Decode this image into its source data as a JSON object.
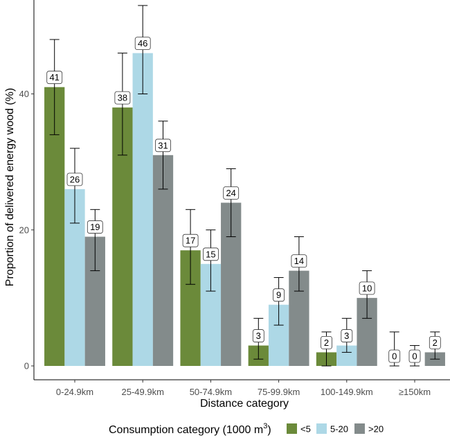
{
  "chart_data": {
    "type": "bar",
    "xlabel": "Distance category",
    "ylabel": "Proportion of delivered energy wood (%)",
    "ylim": [
      0,
      55
    ],
    "yticks": [
      0,
      20,
      40
    ],
    "grid": false,
    "categories": [
      "0-24.9km",
      "25-49.9km",
      "50-74.9km",
      "75-99.9km",
      "100-149.9km",
      "≥150km"
    ],
    "legend": {
      "title_main": "Consumption category (1000 m",
      "title_sup": "3",
      "title_end": ")",
      "position": "bottom"
    },
    "series": [
      {
        "name": "<5",
        "color": "#6b8a3a",
        "values": [
          41,
          38,
          17,
          3,
          2,
          0
        ],
        "labels": [
          "41",
          "38",
          "17",
          "3",
          "2",
          "0"
        ],
        "err_low": [
          34,
          31,
          12,
          1,
          0,
          0
        ],
        "err_high": [
          48,
          46,
          23,
          7,
          5,
          5
        ]
      },
      {
        "name": "5-20",
        "color": "#add8e6",
        "values": [
          26,
          46,
          15,
          9,
          3,
          0
        ],
        "labels": [
          "26",
          "46",
          "15",
          "9",
          "3",
          "0"
        ],
        "err_low": [
          21,
          40,
          11,
          6,
          2,
          0
        ],
        "err_high": [
          32,
          53,
          20,
          13,
          7,
          3
        ]
      },
      {
        "name": ">20",
        "color": "#838b8b",
        "values": [
          19,
          31,
          24,
          14,
          10,
          2
        ],
        "labels": [
          "19",
          "31",
          "24",
          "14",
          "10",
          "2"
        ],
        "err_low": [
          14,
          26,
          19,
          11,
          7,
          1
        ],
        "err_high": [
          23,
          36,
          29,
          19,
          14,
          5
        ]
      }
    ]
  }
}
